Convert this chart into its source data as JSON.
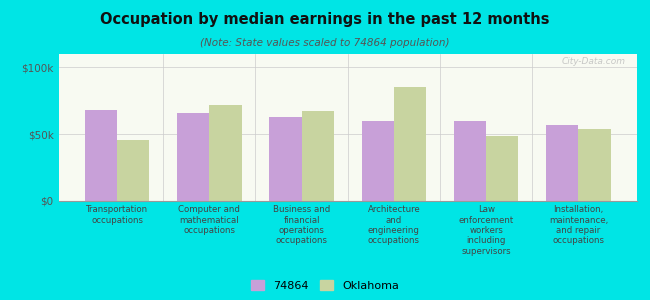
{
  "title": "Occupation by median earnings in the past 12 months",
  "subtitle": "(Note: State values scaled to 74864 population)",
  "categories": [
    "Transportation\noccupations",
    "Computer and\nmathematical\noccupations",
    "Business and\nfinancial\noperations\noccupations",
    "Architecture\nand\nengineering\noccupations",
    "Law\nenforcement\nworkers\nincluding\nsupervisors",
    "Installation,\nmaintenance,\nand repair\noccupations"
  ],
  "values_74864": [
    68000,
    66000,
    63000,
    60000,
    60000,
    57000
  ],
  "values_oklahoma": [
    46000,
    72000,
    67000,
    85000,
    49000,
    54000
  ],
  "color_74864": "#c8a0d8",
  "color_oklahoma": "#c8d4a0",
  "background_color": "#00e5e5",
  "plot_bg_top": "#eef4e2",
  "plot_bg_bottom": "#f8faf2",
  "ylim": [
    0,
    110000
  ],
  "yticks": [
    0,
    50000,
    100000
  ],
  "ytick_labels": [
    "$0",
    "$50k",
    "$100k"
  ],
  "legend_74864": "74864",
  "legend_oklahoma": "Oklahoma",
  "watermark": "City-Data.com",
  "bar_width": 0.35
}
